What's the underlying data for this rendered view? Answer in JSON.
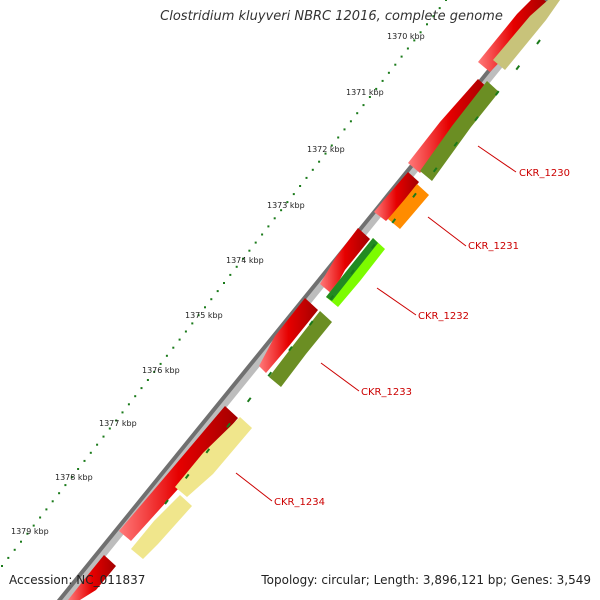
{
  "title": "Clostridium kluyveri NBRC 12016, complete genome",
  "accession": "Accession: NC_011837",
  "summary": "Topology: circular; Length: 3,896,121 bp; Genes: 3,549",
  "ruler_labels": [
    "1370 kbp",
    "1371 kbp",
    "1372 kbp",
    "1373 kbp",
    "1374 kbp",
    "1375 kbp",
    "1376 kbp",
    "1377 kbp",
    "1378 kbp",
    "1379 kbp"
  ],
  "gene_labels": [
    "CKR_1230",
    "CKR_1231",
    "CKR_1232",
    "CKR_1233",
    "CKR_1234"
  ],
  "colors": {
    "forward": "#e60000",
    "olive": "#6b8e23",
    "khaki": "#c8c37a",
    "orange": "#ff8c00",
    "lime": "#7cfc00",
    "pale_yellow": "#f0e68c",
    "ruler": "#1a7a1a",
    "label": "#cc0000",
    "backbone": "#808080"
  }
}
